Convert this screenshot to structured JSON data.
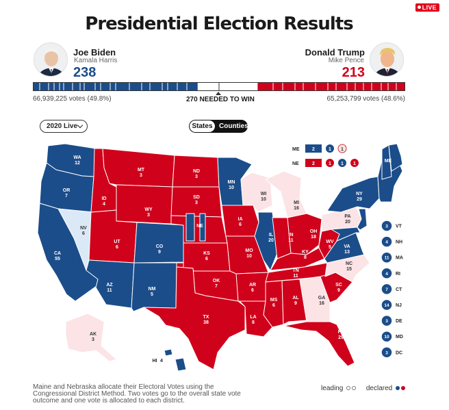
{
  "header": {
    "live_label": "LIVE",
    "title": "Presidential Election Results"
  },
  "candidates": {
    "left": {
      "name": "Joe Biden",
      "running_mate": "Kamala Harris",
      "electoral_votes": "238",
      "popular": "66,939,225 votes (49.8%)",
      "color": "#1b4d8a"
    },
    "right": {
      "name": "Donald Trump",
      "running_mate": "Mike Pence",
      "electoral_votes": "213",
      "popular": "65,253,799 votes (48.6%)",
      "color": "#d0021b"
    }
  },
  "bar": {
    "needed_label": "270 NEEDED TO WIN",
    "total": 538,
    "left_declared": 238,
    "right_declared": 213
  },
  "controls": {
    "year_select": "2020 Live",
    "view_toggle": [
      "States",
      "Counties"
    ],
    "active_view": "States"
  },
  "colors": {
    "dem": "#1b4d8a",
    "rep": "#d0021b",
    "dem_lean": "#dbe9f7",
    "rep_lean": "#fbe3e6"
  },
  "map_labels": [
    {
      "abbr": "WA",
      "ev": "12",
      "party": "dem"
    },
    {
      "abbr": "OR",
      "ev": "7",
      "party": "dem"
    },
    {
      "abbr": "CA",
      "ev": "55",
      "party": "dem"
    },
    {
      "abbr": "NV",
      "ev": "6",
      "party": "dem-lead"
    },
    {
      "abbr": "ID",
      "ev": "4",
      "party": "rep"
    },
    {
      "abbr": "MT",
      "ev": "3",
      "party": "rep"
    },
    {
      "abbr": "WY",
      "ev": "3",
      "party": "rep"
    },
    {
      "abbr": "UT",
      "ev": "6",
      "party": "rep"
    },
    {
      "abbr": "AZ",
      "ev": "11",
      "party": "dem"
    },
    {
      "abbr": "CO",
      "ev": "9",
      "party": "dem"
    },
    {
      "abbr": "NM",
      "ev": "5",
      "party": "dem"
    },
    {
      "abbr": "ND",
      "ev": "3",
      "party": "rep"
    },
    {
      "abbr": "SD",
      "ev": "3",
      "party": "rep"
    },
    {
      "abbr": "NE",
      "ev": "",
      "party": "rep"
    },
    {
      "abbr": "KS",
      "ev": "6",
      "party": "rep"
    },
    {
      "abbr": "OK",
      "ev": "7",
      "party": "rep"
    },
    {
      "abbr": "TX",
      "ev": "38",
      "party": "rep"
    },
    {
      "abbr": "MN",
      "ev": "10",
      "party": "dem"
    },
    {
      "abbr": "IA",
      "ev": "6",
      "party": "rep"
    },
    {
      "abbr": "MO",
      "ev": "10",
      "party": "rep"
    },
    {
      "abbr": "AR",
      "ev": "6",
      "party": "rep"
    },
    {
      "abbr": "LA",
      "ev": "8",
      "party": "rep"
    },
    {
      "abbr": "WI",
      "ev": "10",
      "party": "rep-lead"
    },
    {
      "abbr": "IL",
      "ev": "20",
      "party": "dem"
    },
    {
      "abbr": "MI",
      "ev": "16",
      "party": "rep-lead"
    },
    {
      "abbr": "IN",
      "ev": "11",
      "party": "rep"
    },
    {
      "abbr": "OH",
      "ev": "18",
      "party": "rep"
    },
    {
      "abbr": "KY",
      "ev": "8",
      "party": "rep"
    },
    {
      "abbr": "TN",
      "ev": "11",
      "party": "rep"
    },
    {
      "abbr": "MS",
      "ev": "6",
      "party": "rep"
    },
    {
      "abbr": "AL",
      "ev": "9",
      "party": "rep"
    },
    {
      "abbr": "GA",
      "ev": "16",
      "party": "rep-lead"
    },
    {
      "abbr": "FL",
      "ev": "29",
      "party": "rep"
    },
    {
      "abbr": "SC",
      "ev": "9",
      "party": "rep"
    },
    {
      "abbr": "NC",
      "ev": "15",
      "party": "rep-lead"
    },
    {
      "abbr": "VA",
      "ev": "13",
      "party": "dem"
    },
    {
      "abbr": "WV",
      "ev": "5",
      "party": "rep"
    },
    {
      "abbr": "PA",
      "ev": "20",
      "party": "rep-lead"
    },
    {
      "abbr": "NY",
      "ev": "29",
      "party": "dem"
    },
    {
      "abbr": "ME",
      "ev": "",
      "party": "dem"
    },
    {
      "abbr": "AK",
      "ev": "3",
      "party": "rep-lead"
    },
    {
      "abbr": "HI",
      "ev": "4",
      "party": "dem"
    }
  ],
  "split_states": [
    {
      "state": "ME",
      "total": "2",
      "total_party": "dem",
      "districts": [
        {
          "v": "1",
          "p": "dem"
        },
        {
          "v": "1",
          "p": "rep-lead"
        }
      ]
    },
    {
      "state": "NE",
      "total": "2",
      "total_party": "rep",
      "districts": [
        {
          "v": "1",
          "p": "rep"
        },
        {
          "v": "1",
          "p": "dem"
        },
        {
          "v": "1",
          "p": "rep"
        }
      ]
    }
  ],
  "small_states": [
    {
      "abbr": "VT",
      "ev": "3"
    },
    {
      "abbr": "NH",
      "ev": "4"
    },
    {
      "abbr": "MA",
      "ev": "11"
    },
    {
      "abbr": "RI",
      "ev": "4"
    },
    {
      "abbr": "CT",
      "ev": "7"
    },
    {
      "abbr": "NJ",
      "ev": "14"
    },
    {
      "abbr": "DE",
      "ev": "3"
    },
    {
      "abbr": "MD",
      "ev": "10"
    },
    {
      "abbr": "DC",
      "ev": "3"
    }
  ],
  "footer": {
    "note": "Maine and Nebraska allocate their Electoral Votes using the Congressional District Method. Two votes go to the overall state vote outcome and one vote is allocated to each district.",
    "leading_label": "leading",
    "declared_label": "declared"
  }
}
